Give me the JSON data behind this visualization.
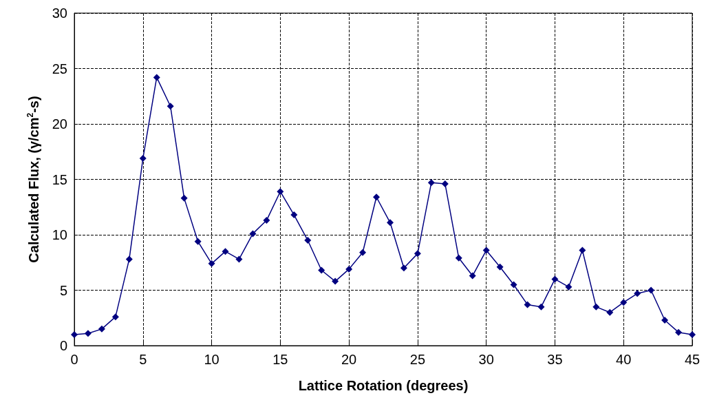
{
  "chart_data": {
    "type": "line",
    "xlabel": "Lattice Rotation (degrees)",
    "ylabel": "Calculated Flux, (γ/cm$^{2}$-s)",
    "x": [
      0,
      1,
      2,
      3,
      4,
      5,
      6,
      7,
      8,
      9,
      10,
      11,
      12,
      13,
      14,
      15,
      16,
      17,
      18,
      19,
      20,
      21,
      22,
      23,
      24,
      25,
      26,
      27,
      28,
      29,
      30,
      31,
      32,
      33,
      34,
      35,
      36,
      37,
      38,
      39,
      40,
      41,
      42,
      43,
      44,
      45
    ],
    "series": [
      {
        "color": "#000080",
        "values": [
          1.0,
          1.1,
          1.5,
          2.6,
          7.8,
          16.9,
          24.2,
          21.6,
          13.3,
          9.4,
          7.4,
          8.5,
          7.8,
          10.1,
          11.3,
          13.9,
          11.8,
          9.5,
          6.8,
          5.8,
          6.9,
          8.4,
          13.4,
          11.1,
          7.0,
          8.3,
          14.7,
          14.6,
          7.9,
          6.3,
          8.6,
          7.1,
          5.5,
          3.7,
          3.5,
          6.0,
          5.3,
          8.6,
          3.5,
          3.0,
          3.9,
          4.7,
          5.0,
          2.3,
          1.2,
          1.0
        ]
      }
    ],
    "xlim": [
      0,
      45
    ],
    "xticks": [
      0,
      5,
      10,
      15,
      20,
      25,
      30,
      35,
      40,
      45
    ],
    "ylim": [
      0,
      30
    ],
    "yticks": [
      0,
      5,
      10,
      15,
      20,
      25,
      30
    ],
    "grid": true,
    "marker": "diamond",
    "line_style": "solid"
  }
}
